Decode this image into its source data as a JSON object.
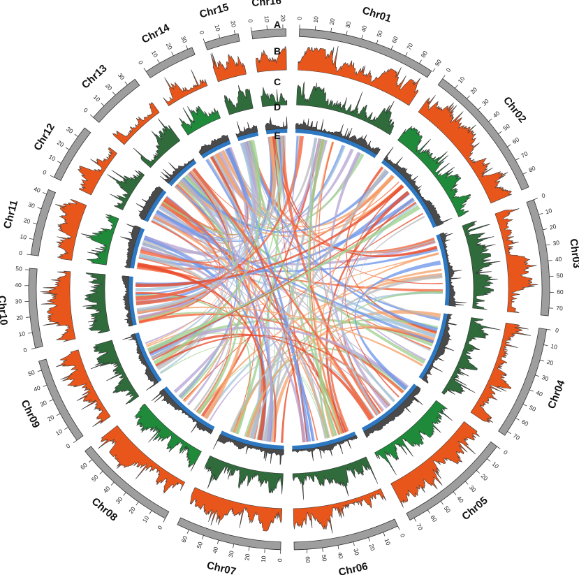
{
  "track_labels": [
    "A",
    "B",
    "C",
    "D",
    "E"
  ],
  "colors": {
    "ideogram": "#9e9e9e",
    "trackB": "#e8561b",
    "trackB_line": "#3b3b3b",
    "trackC": "#1f8a3a",
    "trackC_line": "#333333",
    "trackD": "#2e78c2",
    "trackD_line": "#333333"
  },
  "chromosomes": [
    {
      "name": "Chr01",
      "length": 89,
      "ticks": [
        0,
        10,
        20,
        30,
        40,
        50,
        60,
        70,
        80,
        90
      ]
    },
    {
      "name": "Chr02",
      "length": 89,
      "ticks": [
        0,
        10,
        20,
        30,
        40,
        50,
        60,
        70,
        80
      ]
    },
    {
      "name": "Chr03",
      "length": 75,
      "ticks": [
        0,
        10,
        20,
        30,
        40,
        50,
        60,
        70
      ]
    },
    {
      "name": "Chr04",
      "length": 73,
      "ticks": [
        0,
        10,
        20,
        30,
        40,
        50,
        60,
        70
      ]
    },
    {
      "name": "Chr05",
      "length": 73,
      "ticks": [
        0,
        10,
        20,
        30,
        40,
        50,
        60,
        70
      ]
    },
    {
      "name": "Chr06",
      "length": 68,
      "ticks": [
        0,
        10,
        20,
        30,
        40,
        50,
        60
      ]
    },
    {
      "name": "Chr07",
      "length": 68,
      "ticks": [
        0,
        10,
        20,
        30,
        40,
        50,
        60
      ]
    },
    {
      "name": "Chr08",
      "length": 67,
      "ticks": [
        0,
        10,
        20,
        30,
        40,
        50,
        60
      ]
    },
    {
      "name": "Chr09",
      "length": 56,
      "ticks": [
        0,
        10,
        20,
        30,
        40,
        50
      ]
    },
    {
      "name": "Chr10",
      "length": 51,
      "ticks": [
        0,
        10,
        20,
        30,
        40,
        50
      ]
    },
    {
      "name": "Chr11",
      "length": 43,
      "ticks": [
        0,
        10,
        20,
        30,
        40
      ]
    },
    {
      "name": "Chr12",
      "length": 37,
      "ticks": [
        0,
        10,
        20,
        30
      ]
    },
    {
      "name": "Chr13",
      "length": 36,
      "ticks": [
        0,
        10,
        20,
        30
      ]
    },
    {
      "name": "Chr14",
      "length": 33,
      "ticks": [
        0,
        10,
        20,
        30
      ]
    },
    {
      "name": "Chr15",
      "length": 22,
      "ticks": [
        0,
        10,
        20
      ]
    },
    {
      "name": "Chr16",
      "length": 22,
      "ticks": [
        0,
        10,
        20
      ]
    }
  ],
  "link_colors": [
    "#f4633a",
    "#f5a36c",
    "#6f97ea",
    "#9fd18f",
    "#a6c7de",
    "#b9a6d6",
    "#bdbdbd",
    "#e84a2a"
  ]
}
